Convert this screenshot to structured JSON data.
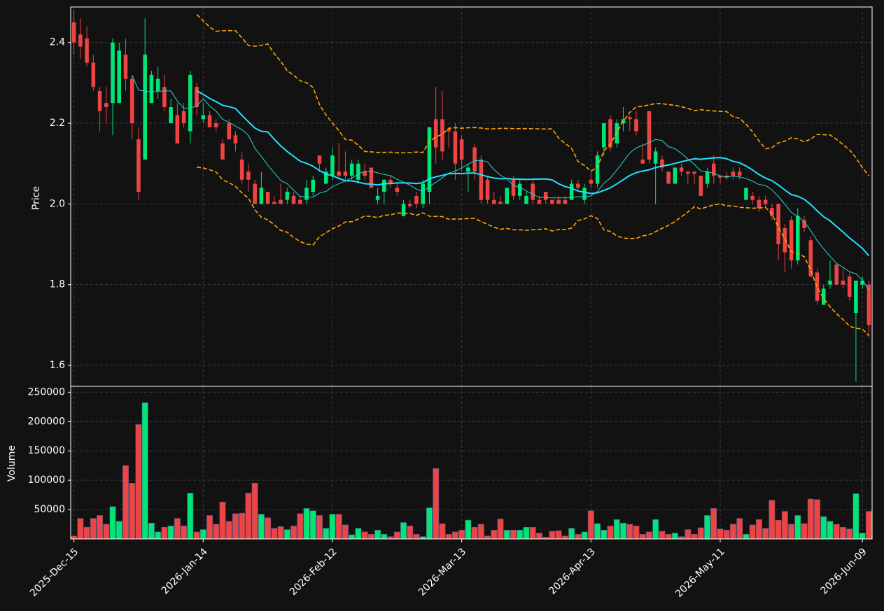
{
  "chart_data": [
    {
      "type": "candlestick",
      "ylabel": "Price",
      "up_color": "#00e676",
      "down_color": "#ef4444",
      "open": [
        2.45,
        2.42,
        2.41,
        2.35,
        2.28,
        2.25,
        2.25,
        2.25,
        2.37,
        2.31,
        2.16,
        2.11,
        2.25,
        2.28,
        2.29,
        2.2,
        2.22,
        2.23,
        2.18,
        2.29,
        2.21,
        2.22,
        2.2,
        2.15,
        2.2,
        2.17,
        2.11,
        2.08,
        2.05,
        2.0,
        2.03,
        2.005,
        2.01,
        2.01,
        2.02,
        2.01,
        2.01,
        2.03,
        2.12,
        2.05,
        2.07,
        2.08,
        2.08,
        2.07,
        2.06,
        2.08,
        2.09,
        2.01,
        2.03,
        2.06,
        2.04,
        1.97,
        2.0,
        2.02,
        2.0,
        2.03,
        2.21,
        2.21,
        2.185,
        2.18,
        2.16,
        2.08,
        2.14,
        2.11,
        2.06,
        2.01,
        2.005,
        2.0,
        2.06,
        2.02,
        2.0,
        2.05,
        2.01,
        2.03,
        2.01,
        2.01,
        2.01,
        2.01,
        2.05,
        2.01,
        2.06,
        2.05,
        2.14,
        2.21,
        2.15,
        2.2,
        2.215,
        2.21,
        2.11,
        2.23,
        2.1,
        2.11,
        2.08,
        2.05,
        2.09,
        2.08,
        2.08,
        2.07,
        2.05,
        2.1,
        2.07,
        2.07,
        2.08,
        2.08,
        2.01,
        2.02,
        2.01,
        2.01,
        1.99,
        2.0,
        1.94,
        1.96,
        1.86,
        1.96,
        1.91,
        1.83,
        1.75,
        1.8,
        1.85,
        1.81,
        1.82,
        1.73,
        1.8,
        1.8
      ],
      "high": [
        2.48,
        2.46,
        2.44,
        2.37,
        2.29,
        2.29,
        2.41,
        2.4,
        2.41,
        2.32,
        2.19,
        2.46,
        2.33,
        2.34,
        2.32,
        2.26,
        2.25,
        2.25,
        2.33,
        2.3,
        2.25,
        2.23,
        2.21,
        2.16,
        2.21,
        2.18,
        2.13,
        2.1,
        2.06,
        2.08,
        2.03,
        2.02,
        2.05,
        2.04,
        2.03,
        2.02,
        2.06,
        2.07,
        2.12,
        2.09,
        2.14,
        2.15,
        2.13,
        2.11,
        2.11,
        2.1,
        2.09,
        2.04,
        2.06,
        2.07,
        2.05,
        2.01,
        2.01,
        2.03,
        2.06,
        2.19,
        2.29,
        2.28,
        2.19,
        2.2,
        2.17,
        2.1,
        2.15,
        2.12,
        2.07,
        2.03,
        2.02,
        2.04,
        2.07,
        2.06,
        2.03,
        2.06,
        2.02,
        2.03,
        2.01,
        2.02,
        2.02,
        2.06,
        2.06,
        2.05,
        2.08,
        2.13,
        2.2,
        2.22,
        2.21,
        2.24,
        2.22,
        2.23,
        2.15,
        2.23,
        2.14,
        2.12,
        2.08,
        2.09,
        2.1,
        2.08,
        2.08,
        2.07,
        2.09,
        2.12,
        2.07,
        2.08,
        2.09,
        2.09,
        2.04,
        2.03,
        2.02,
        2.02,
        2.0,
        2.0,
        1.95,
        1.97,
        1.99,
        1.97,
        1.92,
        1.84,
        1.8,
        1.86,
        1.85,
        1.84,
        1.83,
        1.81,
        1.82,
        1.81
      ],
      "low": [
        2.37,
        2.36,
        2.34,
        2.28,
        2.18,
        2.2,
        2.17,
        2.25,
        2.28,
        2.16,
        2.01,
        2.11,
        2.25,
        2.26,
        2.23,
        2.2,
        2.15,
        2.19,
        2.15,
        2.22,
        2.2,
        2.19,
        2.18,
        2.11,
        2.16,
        2.13,
        2.05,
        2.03,
        2.0,
        2.0,
        2.0,
        2.0,
        2.0,
        2.0,
        2.0,
        2.0,
        2.0,
        2.02,
        2.08,
        2.05,
        2.06,
        2.06,
        2.06,
        2.06,
        2.05,
        2.06,
        2.04,
        2.0,
        2.0,
        2.04,
        2.02,
        1.97,
        1.99,
        1.99,
        1.99,
        2.0,
        2.1,
        2.11,
        2.14,
        2.06,
        2.08,
        2.03,
        2.06,
        2.0,
        2.0,
        2.0,
        2.0,
        2.0,
        2.01,
        2.01,
        2.0,
        2.0,
        2.0,
        2.0,
        2.0,
        2.0,
        2.0,
        2.01,
        2.03,
        2.0,
        2.04,
        2.04,
        2.12,
        2.13,
        2.14,
        2.18,
        2.18,
        2.17,
        2.1,
        2.1,
        2.0,
        2.08,
        2.05,
        2.05,
        2.07,
        2.05,
        2.05,
        2.02,
        2.04,
        2.05,
        2.05,
        2.06,
        2.06,
        2.06,
        2.01,
        2.0,
        1.98,
        1.99,
        1.96,
        1.86,
        1.83,
        1.84,
        1.85,
        1.93,
        1.82,
        1.75,
        1.75,
        1.79,
        1.8,
        1.79,
        1.76,
        1.56,
        1.79,
        1.67
      ],
      "close": [
        2.4,
        2.39,
        2.35,
        2.29,
        2.23,
        2.24,
        2.4,
        2.38,
        2.31,
        2.2,
        2.03,
        2.37,
        2.32,
        2.31,
        2.24,
        2.24,
        2.15,
        2.2,
        2.32,
        2.24,
        2.22,
        2.19,
        2.19,
        2.11,
        2.16,
        2.15,
        2.06,
        2.06,
        2.0,
        2.04,
        2.0,
        2.0,
        2.0,
        2.03,
        2.0,
        2.0,
        2.04,
        2.06,
        2.1,
        2.08,
        2.12,
        2.07,
        2.07,
        2.1,
        2.1,
        2.07,
        2.04,
        2.02,
        2.06,
        2.05,
        2.03,
        2.0,
        1.995,
        2.0,
        2.05,
        2.19,
        2.14,
        2.13,
        2.18,
        2.1,
        2.11,
        2.09,
        2.08,
        2.01,
        2.01,
        2.0,
        2.0,
        2.04,
        2.02,
        2.05,
        2.02,
        2.01,
        2.0,
        2.01,
        2.0,
        2.0,
        2.0,
        2.05,
        2.04,
        2.04,
        2.05,
        2.12,
        2.2,
        2.14,
        2.2,
        2.21,
        2.21,
        2.18,
        2.1,
        2.11,
        2.13,
        2.09,
        2.05,
        2.09,
        2.08,
        2.075,
        2.075,
        2.02,
        2.08,
        2.07,
        2.065,
        2.065,
        2.07,
        2.07,
        2.04,
        2.01,
        1.99,
        2.0,
        1.97,
        1.9,
        1.88,
        1.86,
        1.97,
        1.94,
        1.82,
        1.76,
        1.79,
        1.81,
        1.8,
        1.8,
        1.77,
        1.81,
        1.81,
        1.7
      ],
      "ylim": [
        1.548,
        2.488
      ],
      "yticks": [
        1.6,
        1.8,
        {
          "value": 2,
          "label": "2.0"
        },
        2.2,
        2.4
      ],
      "xlim": [
        -0.5,
        123.5
      ],
      "xticks": [
        {
          "value": 0,
          "label": "2025-Dec-15"
        },
        {
          "value": 20,
          "label": "2026-Jan-14"
        },
        {
          "value": 40,
          "label": "2026-Feb-12"
        },
        {
          "value": 60,
          "label": "2026-Mar-13"
        },
        {
          "value": 80,
          "label": "2026-Apr-13"
        },
        {
          "value": 100,
          "label": "2026-May-11"
        },
        {
          "value": 122,
          "label": "2026-Jun-09"
        }
      ],
      "indicators": [
        {
          "type": "sma",
          "window": 20,
          "color": "#22e0ff",
          "width": 2
        },
        {
          "type": "sma",
          "window": 10,
          "color": "#2ad4d4",
          "width": 1
        },
        {
          "type": "bollinger",
          "window": 20,
          "std": 2,
          "color": "#ffa500",
          "width": 1.6
        }
      ],
      "grid": true
    },
    {
      "type": "bar",
      "ylabel": "Volume",
      "values": [
        5000,
        35000,
        20000,
        35000,
        40000,
        25000,
        55000,
        30000,
        125000,
        95000,
        195000,
        232000,
        27000,
        12000,
        20000,
        22000,
        35000,
        22000,
        78000,
        12000,
        16000,
        40000,
        25000,
        63000,
        30000,
        43000,
        44000,
        78000,
        95000,
        42000,
        36000,
        18000,
        21000,
        16000,
        22000,
        43000,
        52000,
        48000,
        40000,
        18000,
        42000,
        42000,
        24000,
        7000,
        18000,
        12000,
        8000,
        15000,
        8000,
        4000,
        12000,
        28000,
        22000,
        8000,
        4000,
        53000,
        120000,
        26000,
        8000,
        12000,
        15000,
        32000,
        20000,
        25000,
        5000,
        15000,
        34000,
        15000,
        15000,
        15000,
        20000,
        20000,
        10000,
        3000,
        13000,
        14000,
        5000,
        18000,
        8000,
        12000,
        48000,
        26000,
        15000,
        22000,
        33000,
        27000,
        25000,
        22000,
        8000,
        12000,
        33000,
        13000,
        8000,
        10000,
        4000,
        16000,
        8000,
        19000,
        40000,
        52000,
        17000,
        15000,
        25000,
        35000,
        8000,
        24000,
        33000,
        18000,
        66000,
        32000,
        47000,
        25000,
        40000,
        26000,
        68000,
        67000,
        38000,
        30000,
        25000,
        20000,
        17000,
        77000,
        10000,
        47000
      ],
      "ylim": [
        0,
        260000
      ],
      "yticks": [
        50000,
        100000,
        150000,
        200000,
        250000
      ],
      "grid": true
    }
  ]
}
